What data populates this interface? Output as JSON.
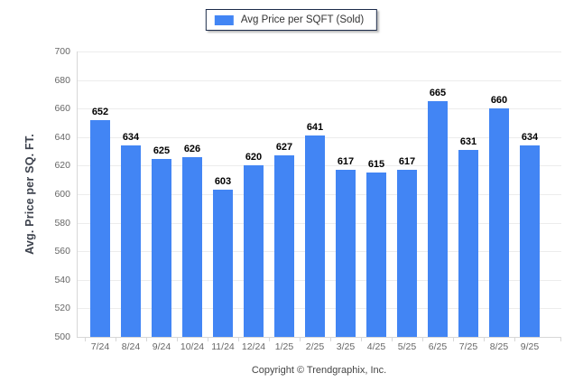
{
  "legend": {
    "label": "Avg Price per SQFT (Sold)",
    "swatch_color": "#4285f4"
  },
  "y_axis": {
    "title": "Avg. Price per SQ. FT."
  },
  "footer": {
    "copyright": "Copyright © Trendgraphix, Inc."
  },
  "colors": {
    "bar": "#4285f4",
    "grid": "#ececec",
    "axis": "#d7d7d7",
    "tick_text": "#666666",
    "value_text": "#000000",
    "legend_border": "#1c2b4a"
  },
  "chart_data": {
    "type": "bar",
    "title": "",
    "xlabel": "",
    "ylabel": "Avg. Price per SQ. FT.",
    "series": [
      {
        "name": "Avg Price per SQFT (Sold)",
        "values": [
          652,
          634,
          625,
          626,
          603,
          620,
          627,
          641,
          617,
          615,
          617,
          665,
          631,
          660,
          634
        ]
      }
    ],
    "categories": [
      "7/24",
      "8/24",
      "9/24",
      "10/24",
      "11/24",
      "12/24",
      "1/25",
      "2/25",
      "3/25",
      "4/25",
      "5/25",
      "6/25",
      "7/25",
      "8/25",
      "9/25"
    ],
    "ylim": [
      500,
      700
    ],
    "yticks": [
      500,
      520,
      540,
      560,
      580,
      600,
      620,
      640,
      660,
      680,
      700
    ],
    "grid": "horizontal",
    "legend_position": "top-center",
    "value_labels": true
  }
}
